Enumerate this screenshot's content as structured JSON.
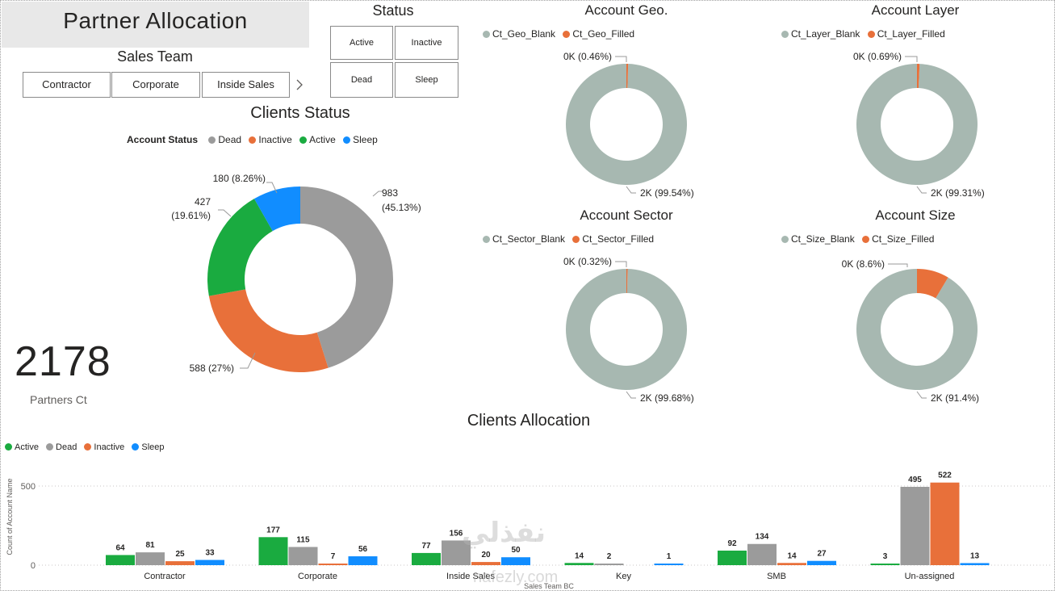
{
  "header": {
    "title": "Partner Allocation"
  },
  "sales_team": {
    "title": "Sales Team",
    "buttons": [
      "Contractor",
      "Corporate",
      "Inside Sales"
    ]
  },
  "status": {
    "title": "Status",
    "buttons": [
      "Active",
      "Inactive",
      "Dead",
      "Sleep"
    ]
  },
  "kpi": {
    "value": "2178",
    "label": "Partners Ct"
  },
  "colors": {
    "dead": "#9b9b9b",
    "inactive": "#e8703a",
    "active": "#1aab40",
    "sleep": "#118dff",
    "blank": "#a7b8b1",
    "filled": "#e8703a"
  },
  "watermark": {
    "arabic": "نفذلي",
    "latin": "nafezly.com"
  },
  "chart_data": [
    {
      "type": "pie",
      "donut": true,
      "title": "Clients Status",
      "legend_title": "Account Status",
      "legend": [
        "Dead",
        "Inactive",
        "Active",
        "Sleep"
      ],
      "slices": [
        {
          "name": "Dead",
          "value": 983,
          "label": "983",
          "label2": "(45.13%)"
        },
        {
          "name": "Inactive",
          "value": 588,
          "label": "588 (27%)"
        },
        {
          "name": "Active",
          "value": 427,
          "label": "427",
          "label2": "(19.61%)"
        },
        {
          "name": "Sleep",
          "value": 180,
          "label": "180 (8.26%)"
        }
      ]
    },
    {
      "type": "pie",
      "donut": true,
      "title": "Account Geo.",
      "legend": [
        "Ct_Geo_Blank",
        "Ct_Geo_Filled"
      ],
      "slices": [
        {
          "name": "Ct_Geo_Blank",
          "percent": 99.54,
          "label": "2K (99.54%)"
        },
        {
          "name": "Ct_Geo_Filled",
          "percent": 0.46,
          "label": "0K (0.46%)"
        }
      ]
    },
    {
      "type": "pie",
      "donut": true,
      "title": "Account Layer",
      "legend": [
        "Ct_Layer_Blank",
        "Ct_Layer_Filled"
      ],
      "slices": [
        {
          "name": "Ct_Layer_Blank",
          "percent": 99.31,
          "label": "2K (99.31%)"
        },
        {
          "name": "Ct_Layer_Filled",
          "percent": 0.69,
          "label": "0K (0.69%)"
        }
      ]
    },
    {
      "type": "pie",
      "donut": true,
      "title": "Account Sector",
      "legend": [
        "Ct_Sector_Blank",
        "Ct_Sector_Filled"
      ],
      "slices": [
        {
          "name": "Ct_Sector_Blank",
          "percent": 99.68,
          "label": "2K (99.68%)"
        },
        {
          "name": "Ct_Sector_Filled",
          "percent": 0.32,
          "label": "0K (0.32%)"
        }
      ]
    },
    {
      "type": "pie",
      "donut": true,
      "title": "Account Size",
      "legend": [
        "Ct_Size_Blank",
        "Ct_Size_Filled"
      ],
      "slices": [
        {
          "name": "Ct_Size_Blank",
          "percent": 91.4,
          "label": "2K (91.4%)"
        },
        {
          "name": "Ct_Size_Filled",
          "percent": 8.6,
          "label": "0K (8.6%)"
        }
      ]
    },
    {
      "type": "bar",
      "title": "Clients Allocation",
      "xlabel": "Sales Team BC",
      "ylabel": "Count of Account Name",
      "ylim": [
        0,
        560
      ],
      "yticks": [
        0,
        500
      ],
      "grid": true,
      "legend": [
        "Active",
        "Dead",
        "Inactive",
        "Sleep"
      ],
      "categories": [
        "Contractor",
        "Corporate",
        "Inside Sales",
        "Key",
        "SMB",
        "Un-assigned"
      ],
      "series": [
        {
          "name": "Active",
          "values": [
            64,
            177,
            77,
            14,
            92,
            3
          ]
        },
        {
          "name": "Dead",
          "values": [
            81,
            115,
            156,
            2,
            134,
            495
          ]
        },
        {
          "name": "Inactive",
          "values": [
            25,
            7,
            20,
            0,
            14,
            522
          ]
        },
        {
          "name": "Sleep",
          "values": [
            33,
            56,
            50,
            1,
            27,
            13
          ]
        }
      ]
    }
  ]
}
